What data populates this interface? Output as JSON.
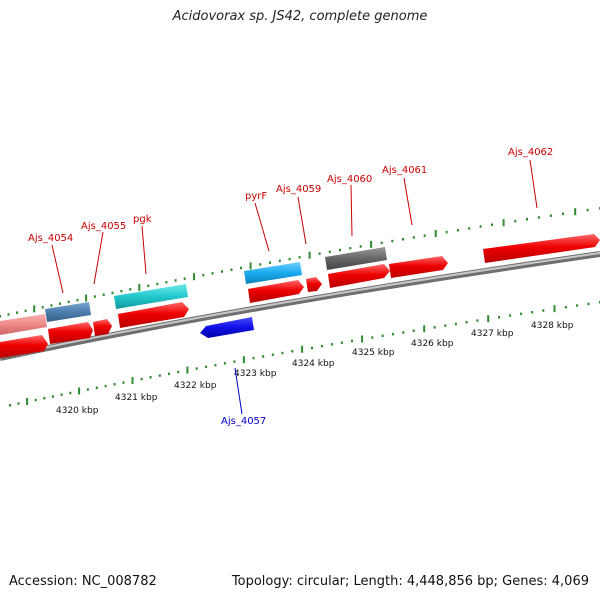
{
  "title": "Acidovorax sp. JS42, complete genome",
  "footer": {
    "accession": "Accession: NC_008782",
    "summary": "Topology: circular; Length: 4,448,856 bp; Genes: 4,069"
  },
  "colors": {
    "forward_gene": "#ff0000",
    "reverse_gene": "#0000ee",
    "forward_label": "#cc0000",
    "reverse_label": "#0000cc",
    "tick": "#2e8b2e",
    "backbone": "#8c8c8c",
    "rna_cyan": "#22c8cc",
    "rna_skyblue": "#19aaee",
    "rna_grey": "#666666",
    "rna_pink": "#ee8888",
    "rna_steelblue": "#4d7eae"
  },
  "ticks": {
    "labels": [
      "4320 kbp",
      "4321 kbp",
      "4322 kbp",
      "4323 kbp",
      "4324 kbp",
      "4325 kbp",
      "4326 kbp",
      "4327 kbp",
      "4328 kbp"
    ]
  },
  "genes": [
    {
      "name": "Ajs_4054",
      "strand": "+"
    },
    {
      "name": "Ajs_4055",
      "strand": "+"
    },
    {
      "name": "pgk",
      "strand": "+"
    },
    {
      "name": "pyrF",
      "strand": "+"
    },
    {
      "name": "Ajs_4059",
      "strand": "+"
    },
    {
      "name": "Ajs_4060",
      "strand": "+"
    },
    {
      "name": "Ajs_4061",
      "strand": "+"
    },
    {
      "name": "Ajs_4062",
      "strand": "+"
    },
    {
      "name": "Ajs_4057",
      "strand": "-"
    }
  ]
}
